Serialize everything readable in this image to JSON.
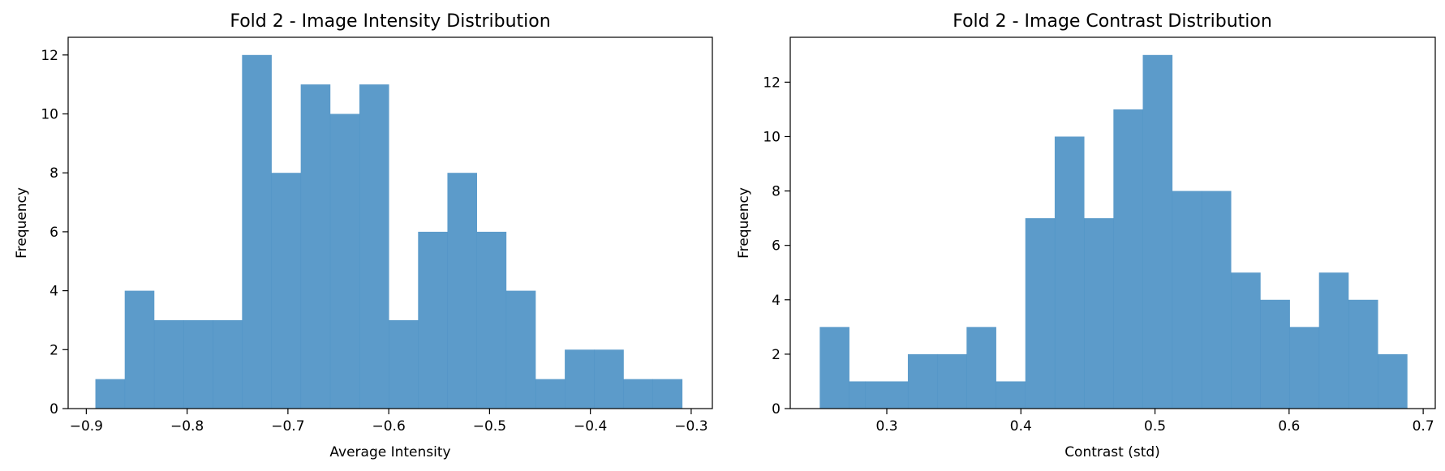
{
  "chart_data": [
    {
      "type": "bar",
      "title": "Fold 2 - Image Intensity Distribution",
      "xlabel": "Average Intensity",
      "ylabel": "Frequency",
      "xlim": [
        -0.918,
        -0.279
      ],
      "ylim": [
        0,
        12.6
      ],
      "xticks": [
        -0.9,
        -0.8,
        -0.7,
        -0.6,
        -0.5,
        -0.4,
        -0.3
      ],
      "xtick_labels": [
        "−0.9",
        "−0.8",
        "−0.7",
        "−0.6",
        "−0.5",
        "−0.4",
        "−0.3"
      ],
      "yticks": [
        0,
        2,
        4,
        6,
        8,
        10,
        12
      ],
      "ytick_labels": [
        "0",
        "2",
        "4",
        "6",
        "8",
        "10",
        "12"
      ],
      "bin_edges": [
        -0.891,
        -0.8619,
        -0.8328,
        -0.8037,
        -0.7746,
        -0.7455,
        -0.7164,
        -0.6873,
        -0.6582,
        -0.6291,
        -0.6,
        -0.5709,
        -0.5418,
        -0.5127,
        -0.4836,
        -0.4545,
        -0.4254,
        -0.3963,
        -0.3672,
        -0.3381,
        -0.309
      ],
      "values": [
        1,
        4,
        3,
        3,
        3,
        12,
        8,
        11,
        10,
        11,
        3,
        6,
        8,
        6,
        4,
        1,
        2,
        2,
        1,
        1
      ],
      "color": "#4a90c4",
      "grid": false
    },
    {
      "type": "bar",
      "title": "Fold 2 - Image Contrast Distribution",
      "xlabel": "Contrast (std)",
      "ylabel": "Frequency",
      "xlim": [
        0.228,
        0.709
      ],
      "ylim": [
        0,
        13.65
      ],
      "xticks": [
        0.3,
        0.4,
        0.5,
        0.6,
        0.7
      ],
      "xtick_labels": [
        "0.3",
        "0.4",
        "0.5",
        "0.6",
        "0.7"
      ],
      "yticks": [
        0,
        2,
        4,
        6,
        8,
        10,
        12
      ],
      "ytick_labels": [
        "0",
        "2",
        "4",
        "6",
        "8",
        "10",
        "12"
      ],
      "bin_edges": [
        0.25,
        0.2719,
        0.2838,
        0.3157,
        0.3376,
        0.3595,
        0.3814,
        0.4033,
        0.4252,
        0.4471,
        0.469,
        0.4909,
        0.5128,
        0.5347,
        0.5566,
        0.5785,
        0.6004,
        0.6223,
        0.6442,
        0.6661,
        0.688
      ],
      "values": [
        3,
        1,
        1,
        2,
        2,
        3,
        1,
        7,
        10,
        7,
        11,
        13,
        8,
        8,
        5,
        4,
        3,
        5,
        4,
        2
      ],
      "color": "#4a90c4",
      "grid": false
    }
  ]
}
